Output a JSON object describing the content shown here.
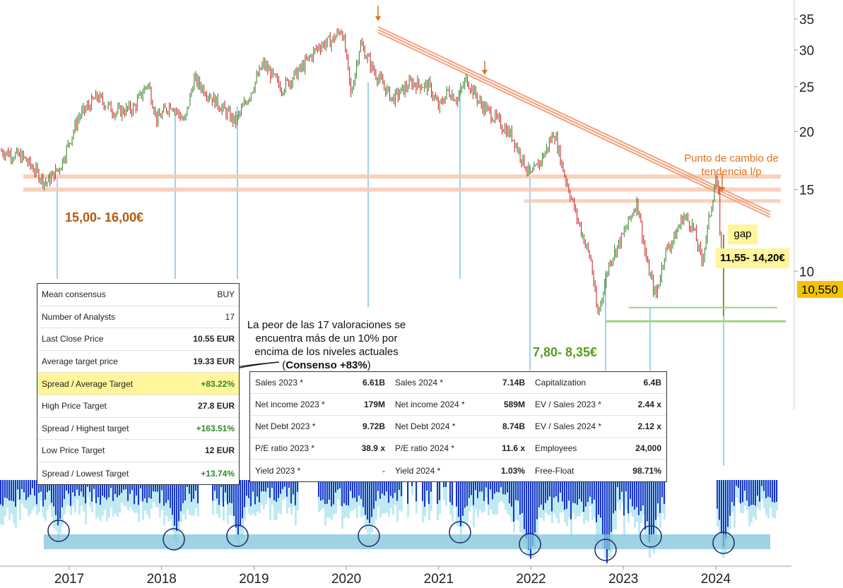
{
  "chart_data": {
    "type": "line",
    "yscale": "log",
    "yticks": [
      10,
      15,
      20,
      25,
      30,
      35
    ],
    "ylim": [
      6,
      37
    ],
    "xticks": [
      "2017",
      "2018",
      "2019",
      "2020",
      "2021",
      "2022",
      "2023",
      "2024"
    ],
    "xlim": [
      2016.25,
      2024.85
    ],
    "price_path": [
      [
        2016.25,
        18.2
      ],
      [
        2016.5,
        17.6
      ],
      [
        2016.75,
        15.5
      ],
      [
        2016.9,
        16.8
      ],
      [
        2017.1,
        21.5
      ],
      [
        2017.3,
        23.8
      ],
      [
        2017.5,
        22.0
      ],
      [
        2017.7,
        22.5
      ],
      [
        2017.85,
        25.5
      ],
      [
        2017.95,
        21.2
      ],
      [
        2018.1,
        23.0
      ],
      [
        2018.25,
        21.0
      ],
      [
        2018.35,
        26.0
      ],
      [
        2018.5,
        24.2
      ],
      [
        2018.7,
        22.0
      ],
      [
        2018.8,
        21.0
      ],
      [
        2018.95,
        24.0
      ],
      [
        2019.1,
        28.0
      ],
      [
        2019.3,
        24.8
      ],
      [
        2019.5,
        27.2
      ],
      [
        2019.7,
        30.6
      ],
      [
        2019.85,
        31.5
      ],
      [
        2019.95,
        33.4
      ],
      [
        2020.0,
        29.0
      ],
      [
        2020.05,
        24.0
      ],
      [
        2020.15,
        31.0
      ],
      [
        2020.3,
        27.0
      ],
      [
        2020.5,
        23.5
      ],
      [
        2020.7,
        25.5
      ],
      [
        2020.9,
        25.0
      ],
      [
        2021.0,
        22.5
      ],
      [
        2021.1,
        24.5
      ],
      [
        2021.2,
        23.5
      ],
      [
        2021.3,
        26.0
      ],
      [
        2021.45,
        23.0
      ],
      [
        2021.6,
        21.5
      ],
      [
        2021.8,
        19.5
      ],
      [
        2021.9,
        17.5
      ],
      [
        2022.0,
        16.0
      ],
      [
        2022.15,
        18.0
      ],
      [
        2022.25,
        20.0
      ],
      [
        2022.35,
        16.5
      ],
      [
        2022.5,
        13.0
      ],
      [
        2022.65,
        10.5
      ],
      [
        2022.72,
        8.0
      ],
      [
        2022.85,
        10.5
      ],
      [
        2023.0,
        12.0
      ],
      [
        2023.15,
        14.2
      ],
      [
        2023.25,
        10.5
      ],
      [
        2023.35,
        8.8
      ],
      [
        2023.45,
        11.0
      ],
      [
        2023.55,
        11.8
      ],
      [
        2023.65,
        13.2
      ],
      [
        2023.75,
        12.5
      ],
      [
        2023.85,
        10.5
      ],
      [
        2023.9,
        12.0
      ],
      [
        2024.0,
        15.8
      ],
      [
        2024.03,
        14.5
      ],
      [
        2024.06,
        10.55
      ]
    ],
    "current_price": "10,550",
    "annotations": {
      "support_high": "15,00- 16,00€",
      "support_low": "7,80- 8,35€",
      "gap_label": "gap",
      "gap_range": "11,55- 14,20€",
      "trend_change": [
        "Punto de cambio de",
        "tendencia l/p"
      ],
      "worst_note": [
        "La peor de las 17 valoraciones se",
        "encuentra más de un 10% por",
        "encima de los niveles actuales"
      ],
      "consensus_pre": "(",
      "consensus_bold": "Consenso +83%",
      "consensus_post": ")"
    },
    "colors": {
      "up": "#2e7d1f",
      "down": "#c41a1a",
      "trendline": "#f4a07a",
      "band": "#f8c9b4",
      "support": "#9ed27a",
      "volume": "#1a36c9",
      "volume_light": "#bfeaf3",
      "volume_band": "#7fc3d8",
      "price_tag": "#f5c400",
      "arrow": "#e07020",
      "high_label": "#b35a10",
      "low_label": "#5a9a1e",
      "gap_bg": "#fff59a"
    }
  },
  "consensus": {
    "rows": [
      {
        "label": "Mean consensus",
        "value": "BUY"
      },
      {
        "label": "Number of Analysts",
        "value": "17"
      },
      {
        "label": "Last Close Price",
        "value": "10.55 EUR"
      },
      {
        "label": "Average target price",
        "value": "19.33 EUR"
      },
      {
        "label": "Spread / Average Target",
        "value": "+83.22%"
      },
      {
        "label": "High Price Target",
        "value": "27.8 EUR"
      },
      {
        "label": "Spread / Highest target",
        "value": "+163.51%"
      },
      {
        "label": "Low Price Target",
        "value": "12 EUR"
      },
      {
        "label": "Spread / Lowest Target",
        "value": "+13.74%"
      }
    ]
  },
  "fundamentals": {
    "cells": [
      {
        "label": "Sales 2023 *",
        "value": "6.61B"
      },
      {
        "label": "Sales 2024 *",
        "value": "7.14B"
      },
      {
        "label": "Capitalization",
        "value": "6.4B"
      },
      {
        "label": "Net income 2023 *",
        "value": "179M"
      },
      {
        "label": "Net income 2024 *",
        "value": "589M"
      },
      {
        "label": "EV / Sales 2023 *",
        "value": "2.44 x"
      },
      {
        "label": "Net Debt 2023 *",
        "value": "9.72B"
      },
      {
        "label": "Net Debt 2024 *",
        "value": "8.74B"
      },
      {
        "label": "EV / Sales 2024 *",
        "value": "2.12 x"
      },
      {
        "label": "P/E ratio 2023 *",
        "value": "38.9 x"
      },
      {
        "label": "P/E ratio 2024 *",
        "value": "11.6 x"
      },
      {
        "label": "Employees",
        "value": "24,000"
      },
      {
        "label": "Yield 2023 *",
        "value": "-"
      },
      {
        "label": "Yield 2024 *",
        "value": "1.03%"
      },
      {
        "label": "Free-Float",
        "value": "98.71%"
      }
    ]
  }
}
